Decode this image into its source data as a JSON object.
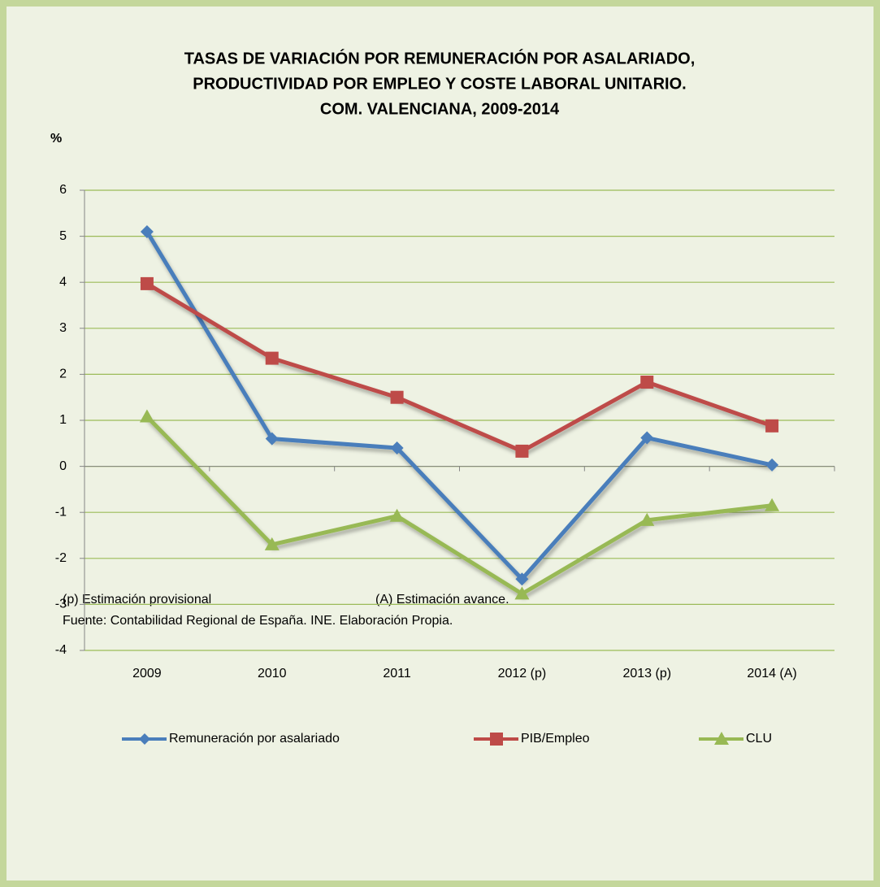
{
  "chart_data": {
    "type": "line",
    "title": [
      "TASAS DE VARIACIÓN POR REMUNERACIÓN POR ASALARIADO,",
      "PRODUCTIVIDAD POR EMPLEO Y COSTE LABORAL UNITARIO.",
      "COM. VALENCIANA, 2009-2014"
    ],
    "ylabel": "%",
    "categories": [
      "2009",
      "2010",
      "2011",
      "2012 (p)",
      "2013 (p)",
      "2014 (A)"
    ],
    "series": [
      {
        "name": "Remuneración por asalariado",
        "color": "#4a7ebb",
        "marker": "diamond",
        "values": [
          5.1,
          0.6,
          0.4,
          -2.45,
          0.62,
          0.03
        ]
      },
      {
        "name": "PIB/Empleo",
        "color": "#be4b48",
        "marker": "square",
        "values": [
          3.97,
          2.35,
          1.5,
          0.33,
          1.83,
          0.88
        ]
      },
      {
        "name": "CLU",
        "color": "#98b954",
        "marker": "triangle",
        "values": [
          1.08,
          -1.7,
          -1.08,
          -2.77,
          -1.17,
          -0.85
        ]
      }
    ],
    "ylim": [
      -4,
      6
    ],
    "yticks": [
      -4,
      -3,
      -2,
      -1,
      0,
      1,
      2,
      3,
      4,
      5,
      6
    ],
    "grid": true,
    "legend": "bottom",
    "notes": [
      "(p) Estimación  provisional",
      "(A) Estimación avance.",
      "Fuente: Contabilidad Regional de España. INE. Elaboración Propia."
    ]
  }
}
